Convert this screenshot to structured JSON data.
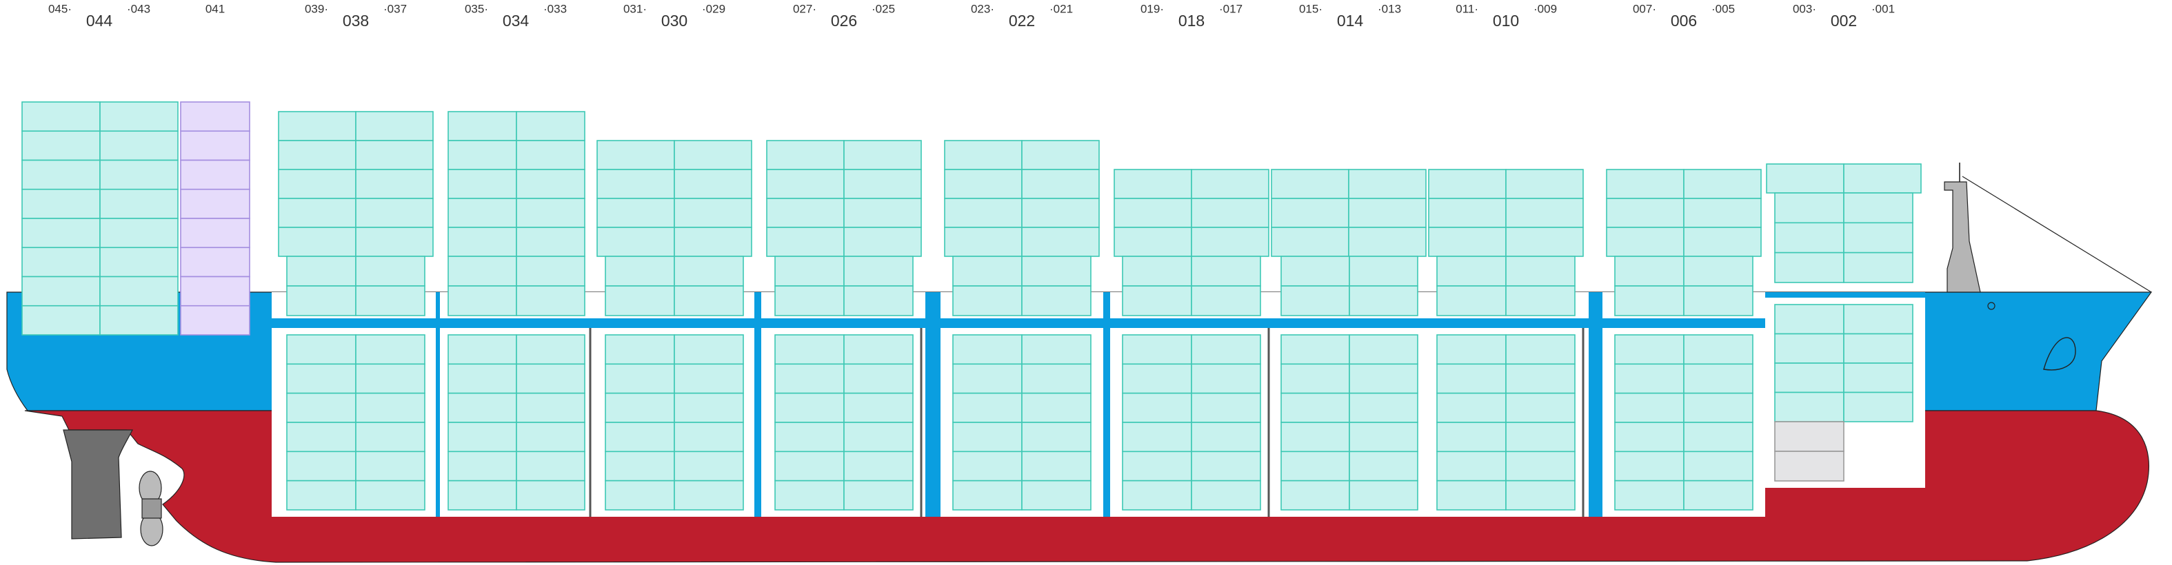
{
  "bays": [
    {
      "left": "045·",
      "label": "044",
      "right": "·043"
    },
    {
      "label": "041"
    },
    {
      "left": "039·",
      "label": "038",
      "right": "·037"
    },
    {
      "left": "035·",
      "label": "034",
      "right": "·033"
    },
    {
      "left": "031·",
      "label": "030",
      "right": "·029"
    },
    {
      "left": "027·",
      "label": "026",
      "right": "·025"
    },
    {
      "left": "023·",
      "label": "022",
      "right": "·021"
    },
    {
      "left": "019·",
      "label": "018",
      "right": "·017"
    },
    {
      "left": "015·",
      "label": "014",
      "right": "·013"
    },
    {
      "left": "011·",
      "label": "010",
      "right": "·009"
    },
    {
      "left": "007·",
      "label": "006",
      "right": "·005"
    },
    {
      "left": "003·",
      "label": "002",
      "right": "·001"
    }
  ]
}
